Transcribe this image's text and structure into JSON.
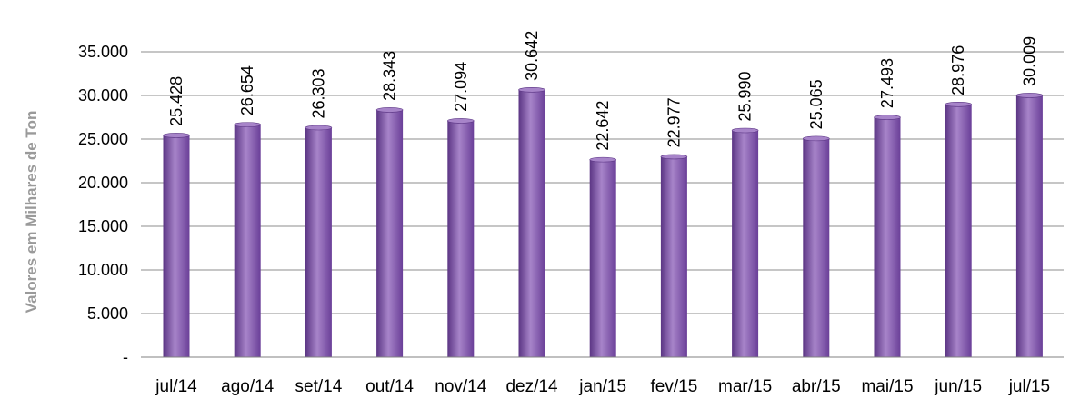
{
  "chart_data": {
    "type": "bar",
    "title": "",
    "xlabel": "",
    "ylabel": "Valores em Milhares de Ton",
    "ylim": [
      0,
      35000
    ],
    "y_tick_labels": [
      "-",
      "5.000",
      "10.000",
      "15.000",
      "20.000",
      "25.000",
      "30.000",
      "35.000"
    ],
    "grid": true,
    "legend": "none",
    "categories": [
      "jul/14",
      "ago/14",
      "set/14",
      "out/14",
      "nov/14",
      "dez/14",
      "jan/15",
      "fev/15",
      "mar/15",
      "abr/15",
      "mai/15",
      "jun/15",
      "jul/15"
    ],
    "values": [
      25428,
      26654,
      26303,
      28343,
      27094,
      30642,
      22642,
      22977,
      25990,
      25065,
      27493,
      28976,
      30009
    ],
    "data_labels": [
      "25.428",
      "26.654",
      "26.303",
      "28.343",
      "27.094",
      "30.642",
      "22.642",
      "22.977",
      "25.990",
      "25.065",
      "27.493",
      "28.976",
      "30.009"
    ],
    "bar_color": "#7b4ea8",
    "bar_color_light": "#a784c9",
    "bar_color_dark": "#5b3584"
  }
}
